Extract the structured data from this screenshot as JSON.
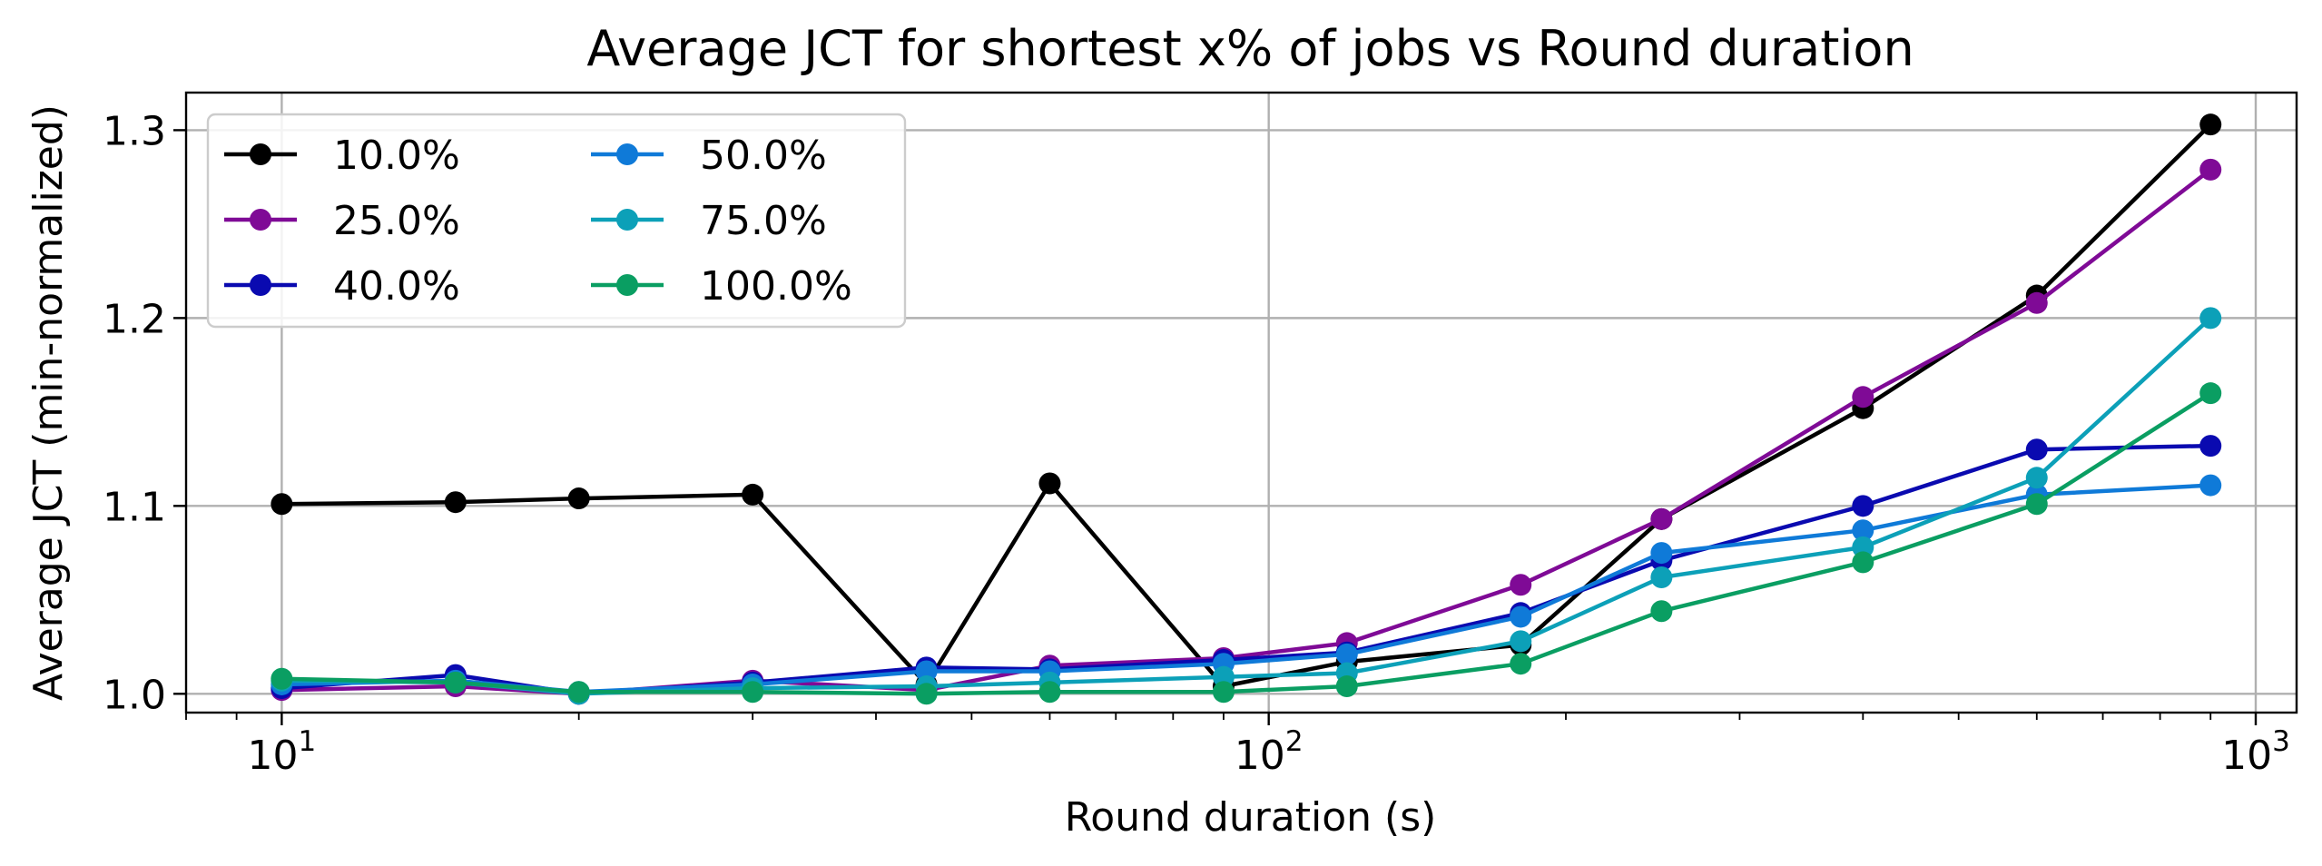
{
  "chart_data": {
    "type": "line",
    "title": "Average JCT for shortest x% of jobs vs Round duration",
    "xlabel": "Round duration (s)",
    "ylabel": "Average JCT (min-normalized)",
    "xscale": "log",
    "xlim": [
      8,
      1100
    ],
    "ylim": [
      0.99,
      1.32
    ],
    "grid": true,
    "legend_position": "upper-left",
    "legend_columns": 2,
    "x_ticks": [
      {
        "base": "10",
        "exp": "1",
        "value": 10
      },
      {
        "base": "10",
        "exp": "2",
        "value": 100
      },
      {
        "base": "10",
        "exp": "3",
        "value": 1000
      }
    ],
    "y_ticks": [
      {
        "label": "1.0",
        "value": 1.0
      },
      {
        "label": "1.1",
        "value": 1.1
      },
      {
        "label": "1.2",
        "value": 1.2
      },
      {
        "label": "1.3",
        "value": 1.3
      }
    ],
    "x": [
      10,
      15,
      20,
      30,
      45,
      60,
      90,
      120,
      180,
      250,
      400,
      600,
      900
    ],
    "series": [
      {
        "name": "10.0%",
        "color": "#000000",
        "values": [
          1.101,
          1.102,
          1.104,
          1.106,
          1.005,
          1.112,
          1.004,
          1.017,
          1.026,
          1.093,
          1.152,
          1.212,
          1.303
        ]
      },
      {
        "name": "25.0%",
        "color": "#7f0a96",
        "values": [
          1.002,
          1.004,
          1.0,
          1.007,
          1.002,
          1.015,
          1.019,
          1.027,
          1.058,
          1.093,
          1.158,
          1.208,
          1.279
        ]
      },
      {
        "name": "40.0%",
        "color": "#0a0ab0",
        "values": [
          1.003,
          1.01,
          1.0,
          1.006,
          1.014,
          1.013,
          1.018,
          1.022,
          1.043,
          1.071,
          1.1,
          1.13,
          1.132
        ]
      },
      {
        "name": "50.0%",
        "color": "#0f7ad8",
        "values": [
          1.005,
          1.007,
          1.001,
          1.005,
          1.012,
          1.012,
          1.016,
          1.021,
          1.041,
          1.075,
          1.087,
          1.106,
          1.111
        ]
      },
      {
        "name": "75.0%",
        "color": "#0ca0b8",
        "values": [
          1.007,
          1.006,
          1.0,
          1.003,
          1.004,
          1.006,
          1.009,
          1.011,
          1.028,
          1.062,
          1.078,
          1.115,
          1.2
        ]
      },
      {
        "name": "100.0%",
        "color": "#0a9e62",
        "values": [
          1.008,
          1.006,
          1.001,
          1.001,
          1.0,
          1.001,
          1.001,
          1.004,
          1.016,
          1.044,
          1.07,
          1.101,
          1.16
        ]
      }
    ]
  }
}
